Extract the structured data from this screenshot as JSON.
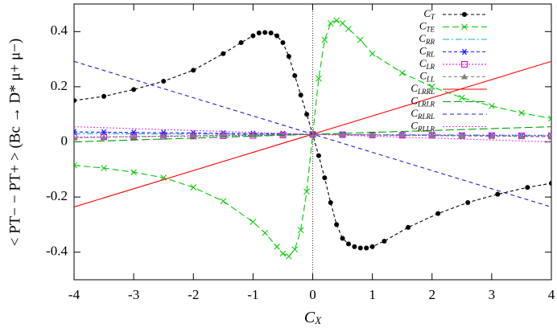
{
  "chart_data": {
    "type": "line",
    "x_label": "CX",
    "y_label": "< PT− − PT+ > (Bc → D* μ+ μ−)",
    "xlim": [
      -4,
      4
    ],
    "ylim": [
      -0.5,
      0.5
    ],
    "xticks": [
      -4,
      -3,
      -2,
      -1,
      0,
      1,
      2,
      3,
      4
    ],
    "yticks": [
      -0.4,
      -0.2,
      0,
      0.2,
      0.4
    ],
    "legend": "top-right",
    "series": [
      {
        "name": "CT",
        "color": "#000000",
        "marker": "circle",
        "dash": "4,3",
        "x": [
          -4,
          -3.5,
          -3,
          -2.5,
          -2,
          -1.5,
          -1.2,
          -1,
          -0.9,
          -0.8,
          -0.7,
          -0.6,
          -0.5,
          -0.4,
          -0.3,
          -0.2,
          -0.1,
          0,
          0.1,
          0.2,
          0.3,
          0.4,
          0.5,
          0.6,
          0.7,
          0.8,
          0.9,
          1,
          1.2,
          1.6,
          2.1,
          2.6,
          3.1,
          3.6,
          4
        ],
        "values": [
          0.15,
          0.165,
          0.19,
          0.22,
          0.26,
          0.32,
          0.36,
          0.385,
          0.395,
          0.397,
          0.395,
          0.385,
          0.36,
          0.31,
          0.24,
          0.17,
          0.1,
          0.027,
          -0.05,
          -0.13,
          -0.22,
          -0.3,
          -0.35,
          -0.37,
          -0.38,
          -0.385,
          -0.385,
          -0.38,
          -0.36,
          -0.31,
          -0.26,
          -0.22,
          -0.19,
          -0.165,
          -0.15
        ]
      },
      {
        "name": "CTE",
        "color": "#00cc00",
        "marker": "x",
        "dash": "8,4",
        "x": [
          -4,
          -3.5,
          -3,
          -2.5,
          -2,
          -1.5,
          -1,
          -0.8,
          -0.6,
          -0.5,
          -0.4,
          -0.3,
          -0.2,
          -0.1,
          0,
          0.1,
          0.2,
          0.3,
          0.4,
          0.5,
          0.6,
          0.8,
          1,
          1.5,
          2,
          2.5,
          3,
          3.5,
          4
        ],
        "values": [
          -0.085,
          -0.095,
          -0.11,
          -0.13,
          -0.165,
          -0.215,
          -0.29,
          -0.33,
          -0.38,
          -0.405,
          -0.415,
          -0.39,
          -0.32,
          -0.18,
          0.027,
          0.23,
          0.37,
          0.43,
          0.44,
          0.43,
          0.41,
          0.37,
          0.32,
          0.25,
          0.2,
          0.16,
          0.13,
          0.105,
          0.085
        ]
      },
      {
        "name": "CRR",
        "color": "#00b8d0",
        "marker": "none",
        "dash": "8,3,2,3",
        "x": [
          -4,
          4
        ],
        "values": [
          0.03,
          0.024
        ]
      },
      {
        "name": "CRL",
        "color": "#1a1aff",
        "marker": "star",
        "dash": "4,3",
        "x": [
          -4,
          -3.5,
          -3,
          -2.5,
          -2,
          -1.5,
          -1,
          -0.5,
          0,
          0.5,
          1,
          1.5,
          2,
          2.5,
          3,
          3.5,
          4
        ],
        "values": [
          0.036,
          0.035,
          0.034,
          0.033,
          0.032,
          0.031,
          0.03,
          0.029,
          0.027,
          0.026,
          0.025,
          0.024,
          0.023,
          0.022,
          0.021,
          0.02,
          0.019
        ]
      },
      {
        "name": "CLR",
        "color": "#e000e0",
        "marker": "square",
        "dash": "2,2",
        "x": [
          -4,
          -3.5,
          -3,
          -2.5,
          -2,
          -1.5,
          -1,
          -0.5,
          0,
          0.5,
          1,
          1.5,
          2,
          2.5,
          3,
          3.5,
          4
        ],
        "values": [
          0.017,
          0.018,
          0.019,
          0.02,
          0.021,
          0.022,
          0.023,
          0.025,
          0.027,
          0.026,
          0.025,
          0.024,
          0.024,
          0.023,
          0.023,
          0.022,
          0.022
        ]
      },
      {
        "name": "CLL",
        "color": "#808080",
        "marker": "triangle",
        "dash": "4,3",
        "x": [
          -4,
          -3.5,
          -3,
          -2.5,
          -2,
          -1.5,
          -1,
          -0.5,
          0,
          0.5,
          1,
          1.5,
          2,
          2.5,
          3,
          3.5,
          4
        ],
        "values": [
          0.015,
          0.017,
          0.019,
          0.021,
          0.022,
          0.024,
          0.025,
          0.026,
          0.027,
          0.026,
          0.025,
          0.024,
          0.023,
          0.022,
          0.021,
          0.02,
          0.019
        ]
      },
      {
        "name": "CLRRL",
        "color": "#ff0000",
        "marker": "none",
        "dash": "none",
        "x": [
          -4,
          4
        ],
        "values": [
          -0.236,
          0.292
        ]
      },
      {
        "name": "CLRLR",
        "color": "#00a000",
        "marker": "none",
        "dash": "10,4",
        "x": [
          -4,
          4
        ],
        "values": [
          0.0,
          0.055
        ]
      },
      {
        "name": "CRLRL",
        "color": "#2020d0",
        "marker": "none",
        "dash": "5,4",
        "x": [
          -4,
          4
        ],
        "values": [
          0.292,
          -0.236
        ]
      },
      {
        "name": "CRLLR",
        "color": "#e040e0",
        "marker": "none",
        "dash": "2,2",
        "x": [
          -4,
          4
        ],
        "values": [
          0.055,
          0.0
        ]
      }
    ]
  }
}
